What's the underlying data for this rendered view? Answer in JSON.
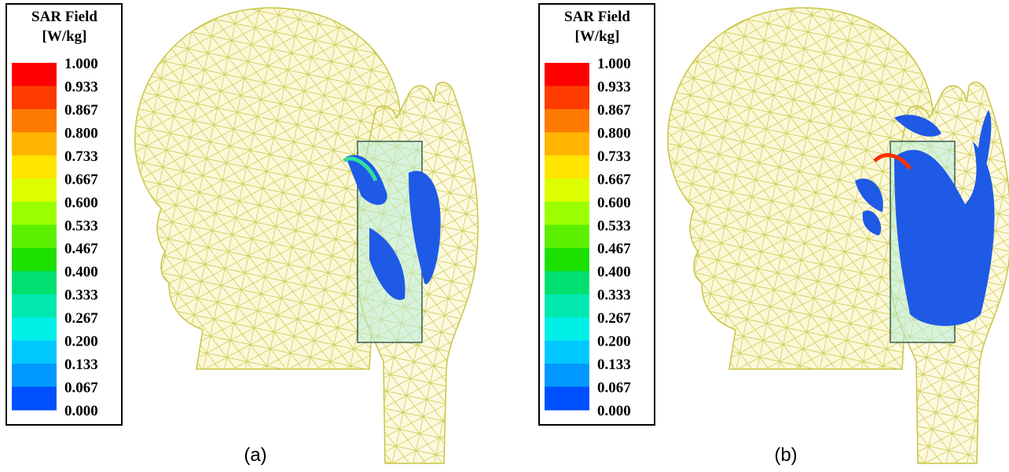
{
  "panels": [
    {
      "legend": {
        "title": [
          "SAR Field",
          "[W/kg]"
        ],
        "labels": [
          "1.000",
          "0.933",
          "0.867",
          "0.800",
          "0.733",
          "0.667",
          "0.600",
          "0.533",
          "0.467",
          "0.400",
          "0.333",
          "0.267",
          "0.200",
          "0.133",
          "0.067",
          "0.000"
        ],
        "colors": [
          "#ff0000",
          "#ff3c00",
          "#ff7a00",
          "#ffb400",
          "#ffe400",
          "#ddff00",
          "#9cff00",
          "#5cf000",
          "#1ee000",
          "#00e070",
          "#00e8b0",
          "#00f0e8",
          "#00c8ff",
          "#0098ff",
          "#0050ff",
          "#0010ff"
        ]
      },
      "caption": "(a)"
    },
    {
      "legend": {
        "title": [
          "SAR Field",
          "[W/kg]"
        ],
        "labels": [
          "1.000",
          "0.933",
          "0.867",
          "0.800",
          "0.733",
          "0.667",
          "0.600",
          "0.533",
          "0.467",
          "0.400",
          "0.333",
          "0.267",
          "0.200",
          "0.133",
          "0.067",
          "0.000"
        ],
        "colors": [
          "#ff0000",
          "#ff3c00",
          "#ff7a00",
          "#ffb400",
          "#ffe400",
          "#ddff00",
          "#9cff00",
          "#5cf000",
          "#1ee000",
          "#00e070",
          "#00e8b0",
          "#00f0e8",
          "#00c8ff",
          "#0098ff",
          "#0050ff",
          "#0010ff"
        ]
      },
      "caption": "(b)"
    }
  ]
}
